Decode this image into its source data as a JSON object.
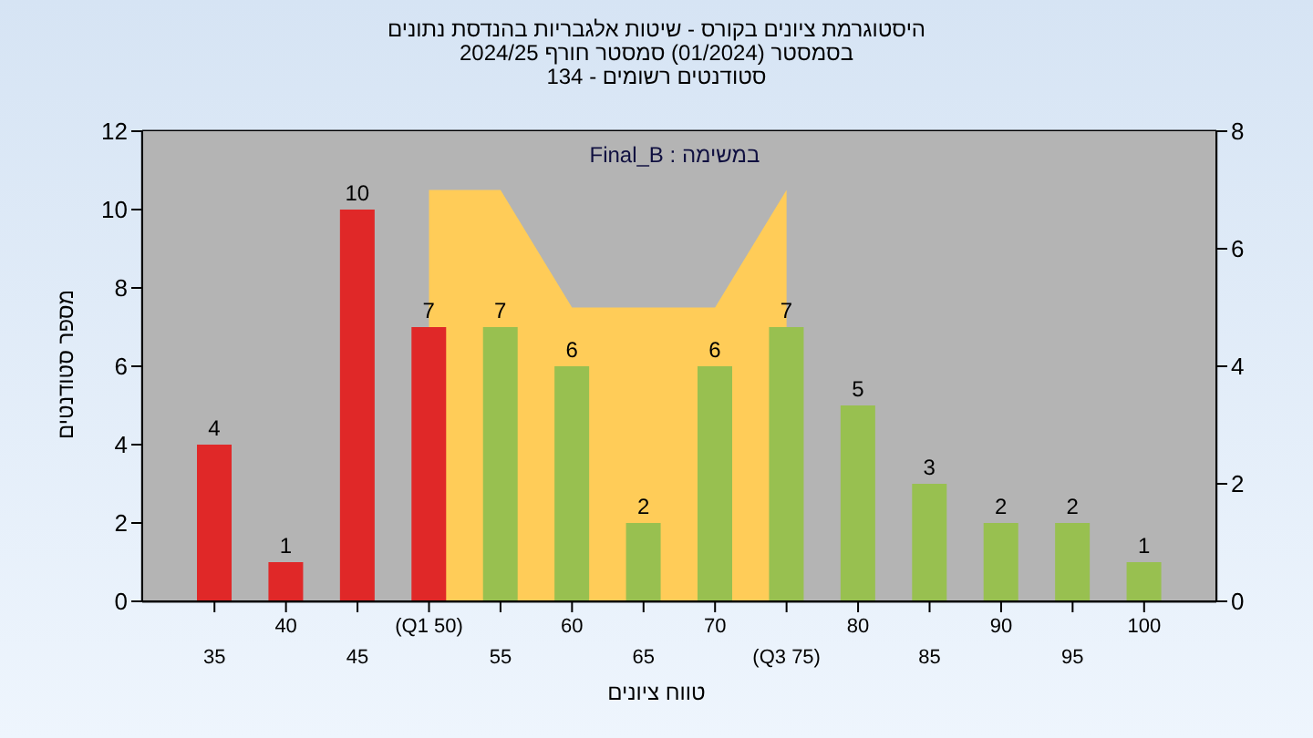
{
  "chart_data": {
    "type": "bar",
    "title": "היסטוגרמת ציונים בקורס - שיטות אלגבריות בהנדסת נתונים",
    "subtitle": "בסמסטר  (01/2024)  סמסטר חורף 2024/25\nסטודנטים רשומים - 134",
    "xlabel": "טווח ציונים",
    "ylabel": "מספר סטודנטים",
    "annotations": [
      "במשימה : Final_B"
    ],
    "categories": [
      "35",
      "40",
      "45",
      "(Q1 50)",
      "55",
      "60",
      "65",
      "70",
      "(Q3 75)",
      "80",
      "85",
      "90",
      "95",
      "100"
    ],
    "series": [
      {
        "values": [
          4,
          1,
          10,
          7,
          7,
          6,
          2,
          6,
          7,
          5,
          3,
          2,
          2,
          1
        ],
        "value_labels": [
          "4",
          "1",
          "10",
          "7",
          "7",
          "6",
          "2",
          "6",
          "7",
          "5",
          "3",
          "2",
          "2",
          "1"
        ],
        "colors": [
          "#e02828",
          "#e02828",
          "#e02828",
          "#e02828",
          "#98c050",
          "#98c050",
          "#98c050",
          "#98c050",
          "#98c050",
          "#98c050",
          "#98c050",
          "#98c050",
          "#98c050",
          "#98c050"
        ]
      },
      {
        "type": "area",
        "axis": "y2",
        "color": "#ffcc58",
        "values": [
          null,
          null,
          null,
          7,
          7,
          5,
          5,
          5,
          7,
          null,
          null,
          null,
          null,
          null
        ]
      }
    ],
    "ylim": [
      0,
      12
    ],
    "yticks": [
      0,
      2,
      4,
      6,
      8,
      10,
      12
    ],
    "y2lim": [
      0,
      8
    ],
    "y2ticks": [
      0,
      2,
      4,
      6,
      8
    ],
    "grid": true
  }
}
